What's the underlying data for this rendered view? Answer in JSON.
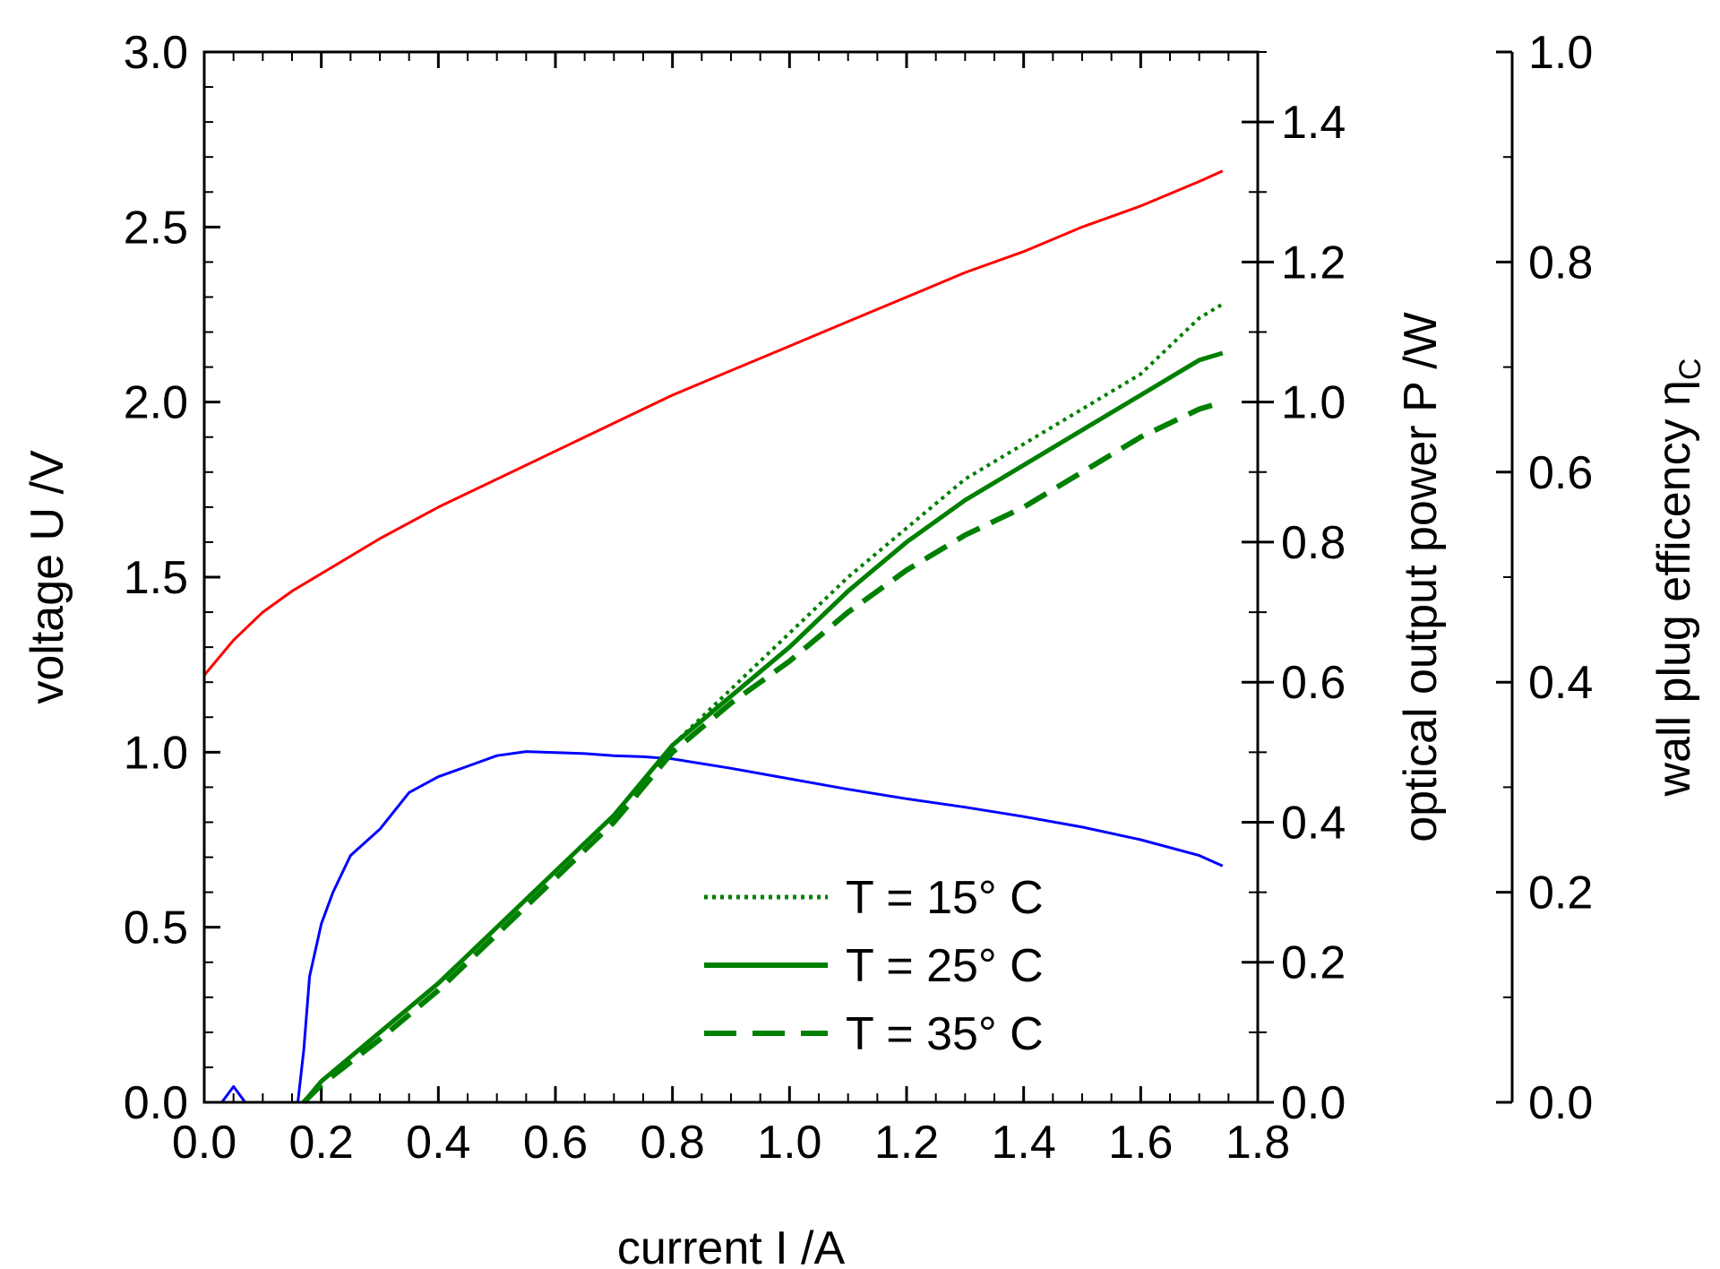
{
  "chart_data": {
    "type": "line",
    "title": "",
    "xlabel": "current I /A",
    "ylabel_left": "voltage U /V",
    "ylabel_right1": "optical output power P /W",
    "ylabel_right2_main": "wall plug efficency η",
    "ylabel_right2_sub": "C",
    "xlim": [
      0.0,
      1.8
    ],
    "ylim_left": [
      0.0,
      3.0
    ],
    "ylim_right1": [
      0.0,
      1.5
    ],
    "ylim_right2": [
      0.0,
      1.0
    ],
    "x_ticks": [
      "0.0",
      "0.2",
      "0.4",
      "0.6",
      "0.8",
      "1.0",
      "1.2",
      "1.4",
      "1.6",
      "1.8"
    ],
    "y_left_ticks": [
      "0.0",
      "0.5",
      "1.0",
      "1.5",
      "2.0",
      "2.5",
      "3.0"
    ],
    "y_right1_ticks": [
      "0.0",
      "0.2",
      "0.4",
      "0.6",
      "0.8",
      "1.0",
      "1.2",
      "1.4"
    ],
    "y_right2_ticks": [
      "0.0",
      "0.2",
      "0.4",
      "0.6",
      "0.8",
      "1.0"
    ],
    "grid": false,
    "legend_position": "bottom-right",
    "colors": {
      "voltage": "#ff0000",
      "efficiency": "#0000ff",
      "power": "#008000"
    },
    "series": [
      {
        "id": "voltage",
        "axis": "left",
        "style": "solid",
        "x": [
          0.0,
          0.05,
          0.1,
          0.15,
          0.2,
          0.3,
          0.4,
          0.5,
          0.6,
          0.7,
          0.8,
          0.9,
          1.0,
          1.1,
          1.2,
          1.3,
          1.4,
          1.5,
          1.6,
          1.7,
          1.74
        ],
        "y": [
          1.22,
          1.32,
          1.4,
          1.46,
          1.51,
          1.61,
          1.7,
          1.78,
          1.86,
          1.94,
          2.02,
          2.09,
          2.16,
          2.23,
          2.3,
          2.37,
          2.43,
          2.5,
          2.56,
          2.63,
          2.66
        ]
      },
      {
        "id": "efficiency",
        "axis": "right2",
        "style": "solid",
        "x": [
          0.0,
          0.03,
          0.05,
          0.07,
          0.1,
          0.14,
          0.16,
          0.17,
          0.18,
          0.2,
          0.22,
          0.25,
          0.3,
          0.35,
          0.4,
          0.45,
          0.5,
          0.55,
          0.6,
          0.65,
          0.7,
          0.75,
          0.8,
          0.9,
          1.0,
          1.1,
          1.2,
          1.3,
          1.4,
          1.5,
          1.6,
          1.7,
          1.74
        ],
        "y": [
          0.0,
          0.0,
          0.015,
          0.0,
          0.0,
          0.0,
          0.0,
          0.05,
          0.12,
          0.17,
          0.2,
          0.235,
          0.26,
          0.295,
          0.31,
          0.32,
          0.33,
          0.334,
          0.333,
          0.332,
          0.33,
          0.329,
          0.327,
          0.318,
          0.308,
          0.298,
          0.289,
          0.281,
          0.272,
          0.262,
          0.25,
          0.235,
          0.225
        ]
      },
      {
        "id": "power_15",
        "name": "T = 15° C",
        "axis": "right1",
        "style": "dotted",
        "x": [
          0.17,
          0.2,
          0.3,
          0.4,
          0.5,
          0.6,
          0.7,
          0.8,
          0.9,
          1.0,
          1.1,
          1.2,
          1.3,
          1.4,
          1.5,
          1.6,
          1.7,
          1.74
        ],
        "y": [
          0.0,
          0.03,
          0.1,
          0.17,
          0.25,
          0.33,
          0.41,
          0.51,
          0.59,
          0.67,
          0.75,
          0.82,
          0.89,
          0.94,
          0.99,
          1.04,
          1.12,
          1.14
        ]
      },
      {
        "id": "power_25",
        "name": "T = 25° C",
        "axis": "right1",
        "style": "solid",
        "x": [
          0.17,
          0.2,
          0.3,
          0.4,
          0.5,
          0.6,
          0.7,
          0.8,
          0.9,
          1.0,
          1.1,
          1.2,
          1.3,
          1.4,
          1.5,
          1.6,
          1.7,
          1.74
        ],
        "y": [
          0.0,
          0.03,
          0.1,
          0.17,
          0.25,
          0.33,
          0.41,
          0.51,
          0.58,
          0.65,
          0.73,
          0.8,
          0.86,
          0.91,
          0.96,
          1.01,
          1.06,
          1.07
        ]
      },
      {
        "id": "power_35",
        "name": "T = 35° C",
        "axis": "right1",
        "style": "dashed",
        "x": [
          0.17,
          0.2,
          0.3,
          0.4,
          0.5,
          0.6,
          0.7,
          0.8,
          0.9,
          1.0,
          1.1,
          1.2,
          1.3,
          1.4,
          1.5,
          1.6,
          1.7,
          1.74
        ],
        "y": [
          0.0,
          0.025,
          0.09,
          0.16,
          0.24,
          0.32,
          0.4,
          0.5,
          0.57,
          0.63,
          0.7,
          0.76,
          0.81,
          0.85,
          0.9,
          0.95,
          0.99,
          1.0
        ]
      }
    ]
  }
}
